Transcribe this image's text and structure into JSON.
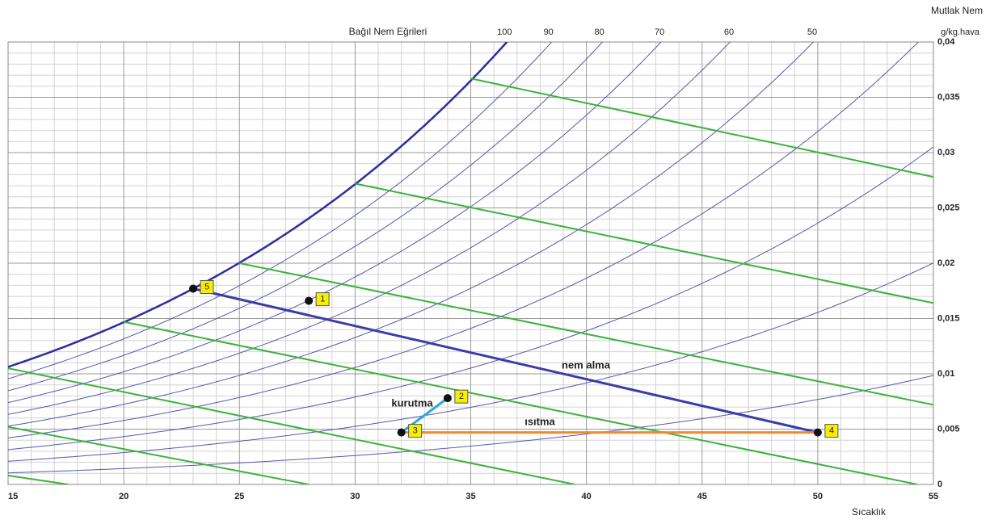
{
  "chart_data": {
    "type": "psychrometric",
    "title": "Bağıl Nem Eğrileri",
    "y_title": "Mutlak Nem",
    "y_unit": "g/kg.hava",
    "x_title": "Sıcaklık",
    "xlim": [
      15,
      55
    ],
    "xticks": [
      15,
      20,
      25,
      30,
      35,
      40,
      45,
      50,
      55
    ],
    "ylim": [
      0,
      0.04
    ],
    "yticks": [
      0,
      {
        "value": 0.005,
        "label": "0,005"
      },
      {
        "value": 0.01,
        "label": "0,01"
      },
      {
        "value": 0.015,
        "label": "0,015"
      },
      {
        "value": 0.02,
        "label": "0,02"
      },
      {
        "value": 0.025,
        "label": "0,025"
      },
      {
        "value": 0.03,
        "label": "0,03"
      },
      {
        "value": 0.035,
        "label": "0,035"
      },
      {
        "value": 0.04,
        "label": "0,04"
      }
    ],
    "grid": true,
    "minor_grid": true,
    "rh_values": [
      100,
      90,
      80,
      70,
      60,
      50,
      40,
      30,
      20,
      10
    ],
    "rh_labels": [
      "100",
      "90",
      "80",
      "70",
      "60",
      "50",
      null,
      null,
      null,
      null
    ],
    "rh_color": "#5558ad",
    "saturation_color": "#2b2f9e",
    "enthalpy_color": "#3cb23c",
    "enthalpy_lines": [
      {
        "x": [
          15,
          17.6
        ],
        "y": [
          0.0008,
          0
        ]
      },
      {
        "x": [
          15,
          28
        ],
        "y": [
          0.0052,
          0
        ]
      },
      {
        "x": [
          15,
          39.5
        ],
        "y": [
          0.0105,
          0
        ]
      },
      {
        "x": [
          20,
          54.3
        ],
        "y": [
          0.0147,
          0
        ]
      },
      {
        "x": [
          25,
          55
        ],
        "y": [
          0.02,
          0.0072
        ]
      },
      {
        "x": [
          30,
          55
        ],
        "y": [
          0.0272,
          0.0164
        ]
      },
      {
        "x": [
          35,
          55
        ],
        "y": [
          0.0367,
          0.0278
        ]
      }
    ],
    "processes": [
      {
        "name": "nem alma",
        "color": "#3a3ca8",
        "x": [
          23,
          50
        ],
        "y": [
          0.0177,
          0.0047
        ]
      },
      {
        "name": "kurutma",
        "color": "#2aa7d8",
        "x": [
          32,
          34
        ],
        "y": [
          0.0047,
          0.0078
        ]
      },
      {
        "name": "ısıtma",
        "color": "#f08a2c",
        "x": [
          32,
          50
        ],
        "y": [
          0.0047,
          0.0047
        ]
      }
    ],
    "points": [
      {
        "label": "1",
        "x": 28,
        "y": 0.0166
      },
      {
        "label": "2",
        "x": 34,
        "y": 0.0078
      },
      {
        "label": "3",
        "x": 32,
        "y": 0.0047
      },
      {
        "label": "4",
        "x": 50,
        "y": 0.0047
      },
      {
        "label": "5",
        "x": 23,
        "y": 0.0177
      }
    ]
  }
}
